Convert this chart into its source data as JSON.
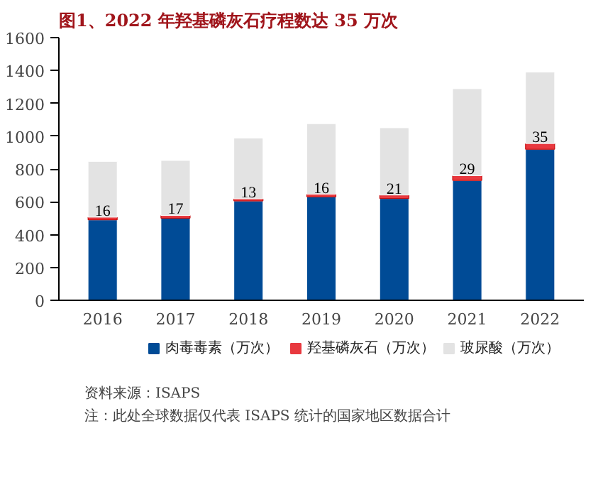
{
  "chart_data": {
    "type": "bar",
    "title": "图1、2022 年羟基磷灰石疗程数达 35 万次",
    "categories": [
      "2016",
      "2017",
      "2018",
      "2019",
      "2020",
      "2021",
      "2022"
    ],
    "stacked": true,
    "series": [
      {
        "name": "肉毒毒素（万次）",
        "color": "#004b96",
        "values": [
          490,
          500,
          605,
          630,
          620,
          730,
          920
        ]
      },
      {
        "name": "羟基磷灰石（万次）",
        "color": "#e8393f",
        "values": [
          16,
          17,
          13,
          16,
          21,
          29,
          35
        ],
        "value_labels": [
          "16",
          "17",
          "13",
          "16",
          "21",
          "29",
          "35"
        ]
      },
      {
        "name": "玻尿酸（万次）",
        "color": "#e3e3e3",
        "values": [
          340,
          335,
          370,
          430,
          410,
          530,
          435
        ]
      }
    ],
    "ylim": [
      0,
      1600
    ],
    "yticks": [
      0,
      200,
      400,
      600,
      800,
      1000,
      1200,
      1400,
      1600
    ],
    "grid": false,
    "legend": "bottom",
    "annotations": [
      "资料来源：ISAPS",
      "注：此处全球数据仅代表 ISAPS 统计的国家地区数据合计"
    ]
  }
}
